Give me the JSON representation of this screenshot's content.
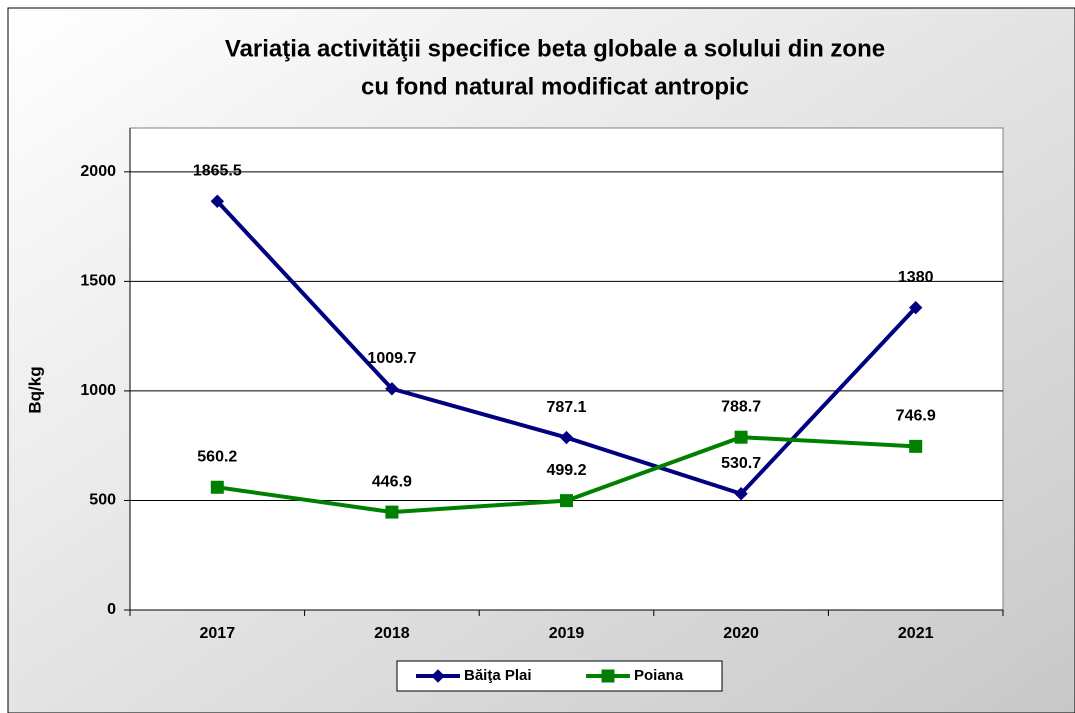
{
  "chart_data": {
    "type": "line",
    "title": [
      "Variaţia  activităţii specifice beta globale a solului din zone",
      "cu fond natural modificat antropic"
    ],
    "y_label": "Bq/kg",
    "categories": [
      "2017",
      "2018",
      "2019",
      "2020",
      "2021"
    ],
    "series": [
      {
        "name": "Băiţa Plai",
        "color": "#000080",
        "marker": "diamond",
        "values": [
          1865.5,
          1009.7,
          787.1,
          530.7,
          1380
        ]
      },
      {
        "name": "Poiana",
        "color": "#008000",
        "marker": "square",
        "values": [
          560.2,
          446.9,
          499.2,
          788.7,
          746.9
        ]
      }
    ],
    "ylim": [
      0,
      2200
    ],
    "yticks": [
      0,
      500,
      1000,
      1500,
      2000
    ],
    "grid": true,
    "legend": "bottom"
  }
}
